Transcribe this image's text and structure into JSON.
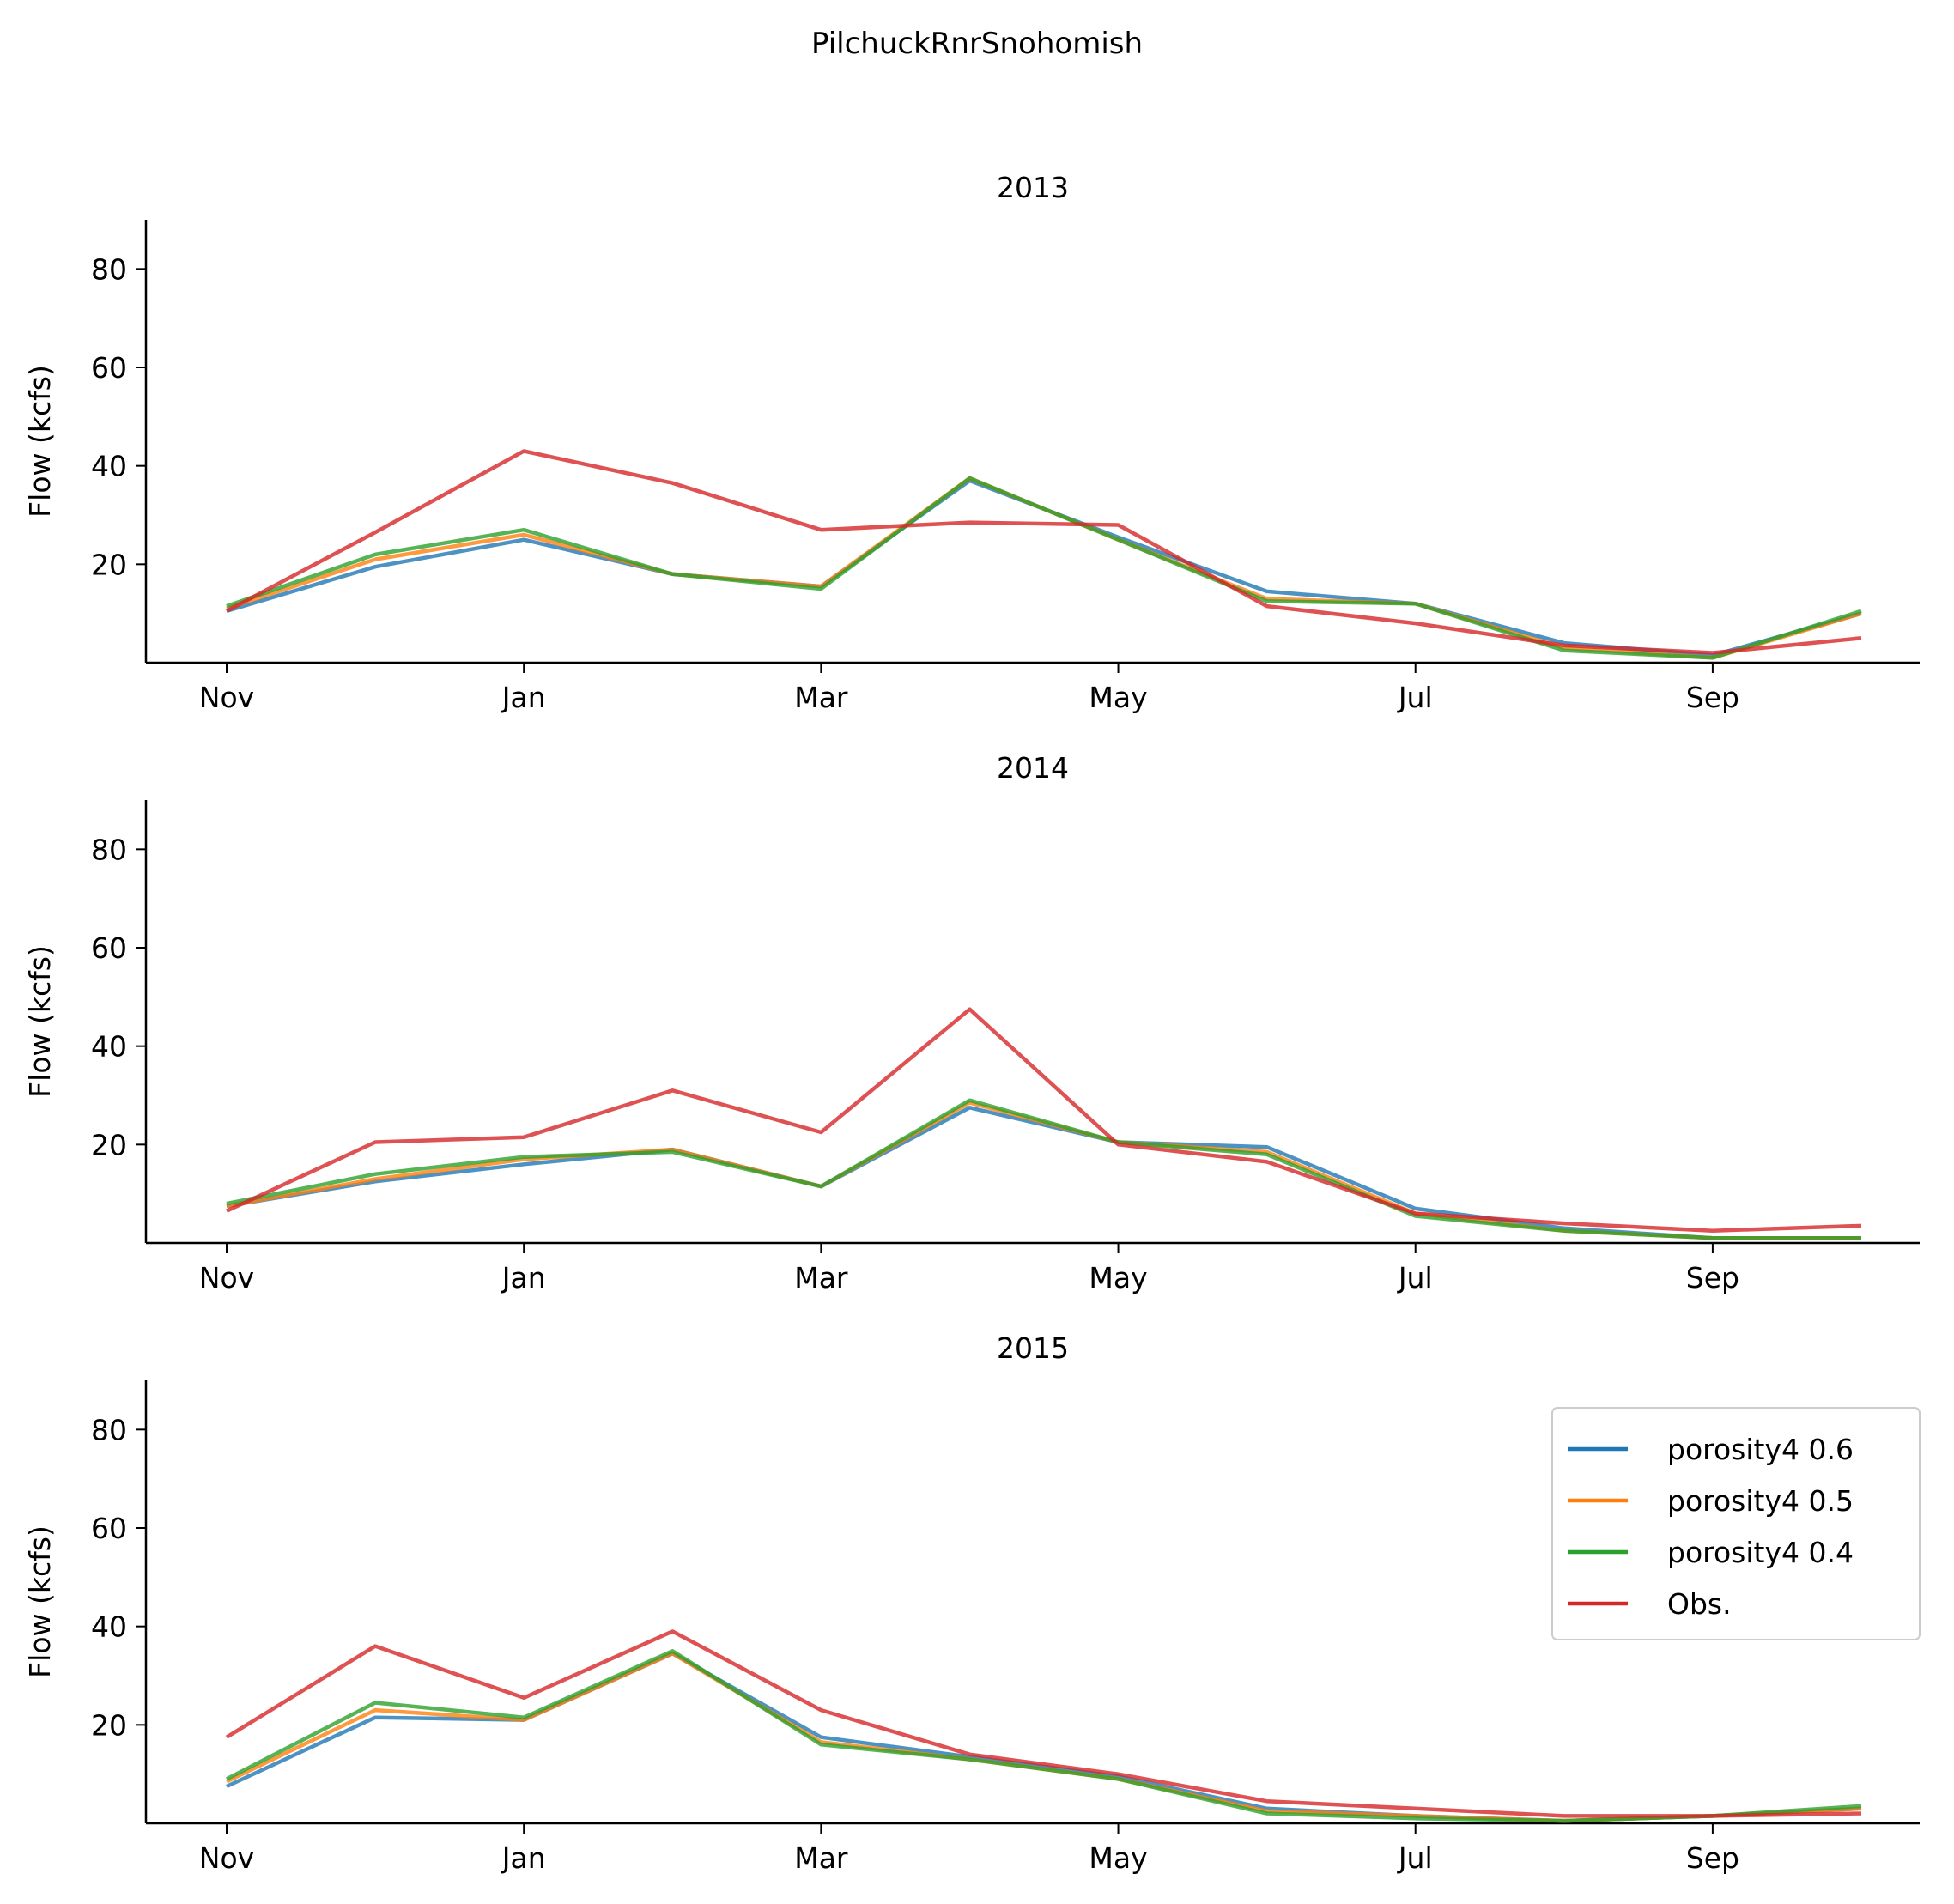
{
  "figure_title": "PilchuckRnrSnohomish",
  "colors": {
    "porosity4 0.6": "#1f77b4",
    "porosity4 0.5": "#ff7f0e",
    "porosity4 0.4": "#2ca02c",
    "Obs.": "#d62728"
  },
  "chart_data": [
    {
      "type": "line",
      "title": "2013",
      "xlabel": "",
      "ylabel": "Flow (kcfs)",
      "ylim": [
        0,
        90
      ],
      "yticks": [
        20,
        40,
        60,
        80
      ],
      "xticks": [
        "Nov",
        "Jan",
        "Mar",
        "May",
        "Jul",
        "Sep"
      ],
      "x": [
        "Nov",
        "Dec",
        "Jan",
        "Feb",
        "Mar",
        "Apr",
        "May",
        "Jun",
        "Jul",
        "Aug",
        "Sep",
        "Oct"
      ],
      "grid": false,
      "series": [
        {
          "name": "porosity4 0.6",
          "values": [
            10.5,
            19.5,
            25.0,
            18.0,
            15.5,
            37.0,
            25.5,
            14.5,
            12.0,
            4.0,
            1.5,
            10.0
          ]
        },
        {
          "name": "porosity4 0.5",
          "values": [
            11.0,
            21.0,
            26.0,
            18.0,
            15.5,
            37.5,
            25.0,
            13.0,
            12.0,
            3.0,
            1.0,
            10.0
          ]
        },
        {
          "name": "porosity4 0.4",
          "values": [
            11.5,
            22.0,
            27.0,
            18.0,
            15.0,
            37.5,
            25.0,
            12.5,
            12.0,
            2.5,
            1.0,
            10.5
          ]
        },
        {
          "name": "Obs.",
          "values": [
            10.5,
            26.5,
            43.0,
            36.5,
            27.0,
            28.5,
            28.0,
            11.5,
            8.0,
            3.5,
            2.0,
            5.0
          ]
        }
      ]
    },
    {
      "type": "line",
      "title": "2014",
      "xlabel": "",
      "ylabel": "Flow (kcfs)",
      "ylim": [
        0,
        90
      ],
      "yticks": [
        20,
        40,
        60,
        80
      ],
      "xticks": [
        "Nov",
        "Jan",
        "Mar",
        "May",
        "Jul",
        "Sep"
      ],
      "x": [
        "Nov",
        "Dec",
        "Jan",
        "Feb",
        "Mar",
        "Apr",
        "May",
        "Jun",
        "Jul",
        "Aug",
        "Sep",
        "Oct"
      ],
      "grid": false,
      "series": [
        {
          "name": "porosity4 0.6",
          "values": [
            7.5,
            12.5,
            16.0,
            19.0,
            11.5,
            27.5,
            20.5,
            19.5,
            7.0,
            3.0,
            1.0,
            1.0
          ]
        },
        {
          "name": "porosity4 0.5",
          "values": [
            7.5,
            13.0,
            17.0,
            19.0,
            11.5,
            28.5,
            20.5,
            18.5,
            6.0,
            2.5,
            1.0,
            1.0
          ]
        },
        {
          "name": "porosity4 0.4",
          "values": [
            8.0,
            14.0,
            17.5,
            18.5,
            11.5,
            29.0,
            20.5,
            18.0,
            5.5,
            2.5,
            1.0,
            1.0
          ]
        },
        {
          "name": "Obs.",
          "values": [
            6.5,
            20.5,
            21.5,
            31.0,
            22.5,
            47.5,
            20.0,
            16.5,
            6.0,
            4.0,
            2.5,
            3.5
          ]
        }
      ]
    },
    {
      "type": "line",
      "title": "2015",
      "xlabel": "",
      "ylabel": "Flow (kcfs)",
      "ylim": [
        0,
        90
      ],
      "yticks": [
        20,
        40,
        60,
        80
      ],
      "xticks": [
        "Nov",
        "Jan",
        "Mar",
        "May",
        "Jul",
        "Sep"
      ],
      "x": [
        "Nov",
        "Dec",
        "Jan",
        "Feb",
        "Mar",
        "Apr",
        "May",
        "Jun",
        "Jul",
        "Aug",
        "Sep",
        "Oct"
      ],
      "grid": false,
      "legend": "top-right",
      "series": [
        {
          "name": "porosity4 0.6",
          "values": [
            7.5,
            21.5,
            21.0,
            34.5,
            17.5,
            13.5,
            9.5,
            3.0,
            1.5,
            0.5,
            1.5,
            3.0
          ]
        },
        {
          "name": "porosity4 0.5",
          "values": [
            8.5,
            23.0,
            21.0,
            34.5,
            16.5,
            13.0,
            9.0,
            2.5,
            1.5,
            0.5,
            1.5,
            3.0
          ]
        },
        {
          "name": "porosity4 0.4",
          "values": [
            9.0,
            24.5,
            21.5,
            35.0,
            16.0,
            13.0,
            9.0,
            2.0,
            1.0,
            0.5,
            1.5,
            3.5
          ]
        },
        {
          "name": "Obs.",
          "values": [
            17.5,
            36.0,
            25.5,
            39.0,
            23.0,
            14.0,
            10.0,
            4.5,
            3.0,
            1.5,
            1.5,
            2.0
          ]
        }
      ]
    }
  ]
}
